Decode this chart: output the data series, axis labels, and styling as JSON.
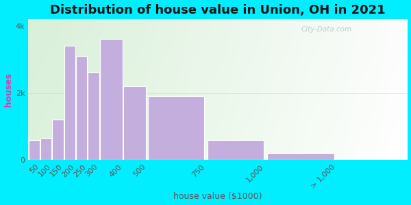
{
  "title": "Distribution of house value in Union, OH in 2021",
  "xlabel": "house value ($1000)",
  "ylabel": "houses",
  "bar_left_edges": [
    0,
    50,
    100,
    150,
    200,
    250,
    300,
    400,
    500,
    750,
    1000
  ],
  "bar_widths": [
    50,
    50,
    50,
    50,
    50,
    50,
    100,
    100,
    250,
    250,
    300
  ],
  "bar_values": [
    600,
    650,
    1200,
    3400,
    3100,
    2600,
    3600,
    2200,
    1900,
    600,
    200
  ],
  "bar_color": "#c4aedd",
  "bar_edge_color": "#ffffff",
  "xtick_positions": [
    50,
    100,
    150,
    200,
    250,
    300,
    400,
    500,
    750,
    1000,
    1300
  ],
  "xtick_labels": [
    "50",
    "100",
    "150",
    "200",
    "250",
    "300",
    "400",
    "500",
    "750",
    "1,000",
    "> 1,000"
  ],
  "ytick_vals": [
    0,
    2000,
    4000
  ],
  "ytick_labels": [
    "0",
    "2k",
    "4k"
  ],
  "xlim": [
    0,
    1600
  ],
  "ylim": [
    0,
    4200
  ],
  "background_outer": "#00eeff",
  "title_fontsize": 13,
  "axis_label_fontsize": 9,
  "tick_fontsize": 8,
  "ylabel_color": "#cc44aa",
  "xlabel_color": "#555555",
  "title_color": "#111111",
  "watermark_text": "City-Data.com"
}
